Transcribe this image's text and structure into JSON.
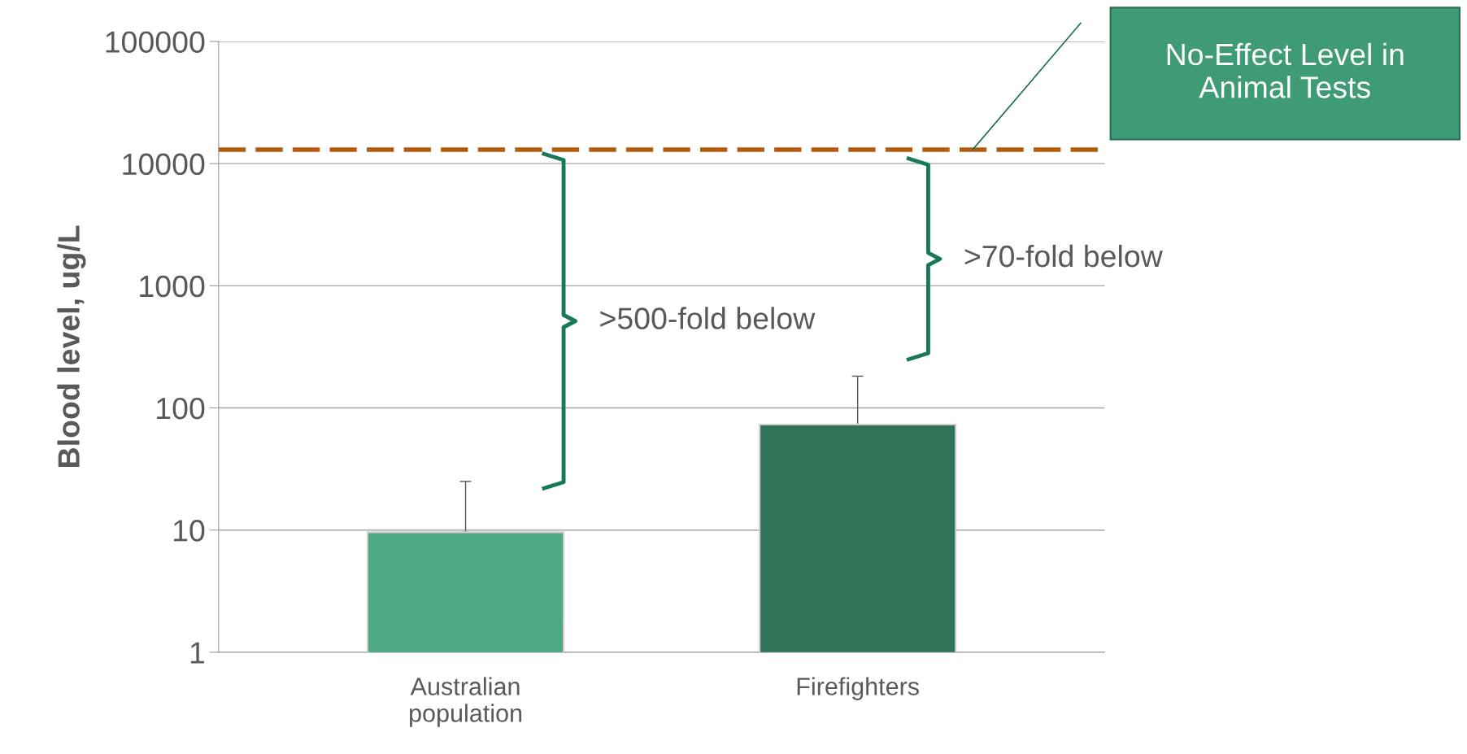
{
  "chart_data": {
    "type": "bar",
    "ylabel": "Blood level, ug/L",
    "categories": [
      "Australian\npopulation",
      "Firefighters"
    ],
    "values": [
      9.6,
      73
    ],
    "errors": [
      [
        9.6,
        25
      ],
      [
        73,
        182
      ]
    ],
    "colors": [
      "#4fa884",
      "#2f7458"
    ],
    "log": true,
    "ylim": [
      1,
      100000
    ],
    "yticks": [
      1,
      10,
      100,
      1000,
      10000,
      100000
    ],
    "grid": "y",
    "ref_lines": [
      {
        "axis": "y",
        "value": 13000,
        "label": "No-Effect Level in\nAnimal Tests",
        "color": "#b35c0e",
        "line_style": "dashed"
      }
    ],
    "annotations": [
      ">500-fold below",
      ">70-fold below"
    ]
  }
}
